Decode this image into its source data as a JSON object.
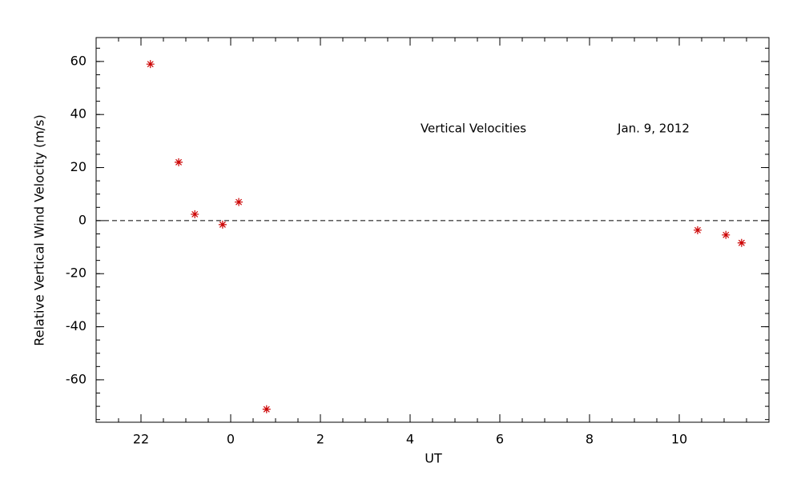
{
  "chart_data": {
    "type": "scatter",
    "annotations": [
      "Vertical Velocities",
      "Jan. 9, 2012"
    ],
    "xlabel": "UT",
    "ylabel": "Relative Vertical Wind Velocity (m/s)",
    "xlim": [
      -3,
      12
    ],
    "ylim": [
      -76,
      69
    ],
    "xticks": [
      {
        "value": -2,
        "label": "22"
      },
      0,
      2,
      4,
      6,
      8,
      10
    ],
    "yticks": [
      -60,
      -40,
      -20,
      0,
      20,
      40,
      60
    ],
    "hline": 0,
    "series": [
      {
        "color": "#cc0000",
        "x": [
          -1.79,
          -1.16,
          -0.8,
          -0.18,
          0.18,
          0.8,
          10.41,
          11.04,
          11.39
        ],
        "values": [
          59,
          22,
          2.4,
          -1.5,
          7,
          -71.1,
          -3.6,
          -5.4,
          -8.4
        ]
      }
    ]
  }
}
